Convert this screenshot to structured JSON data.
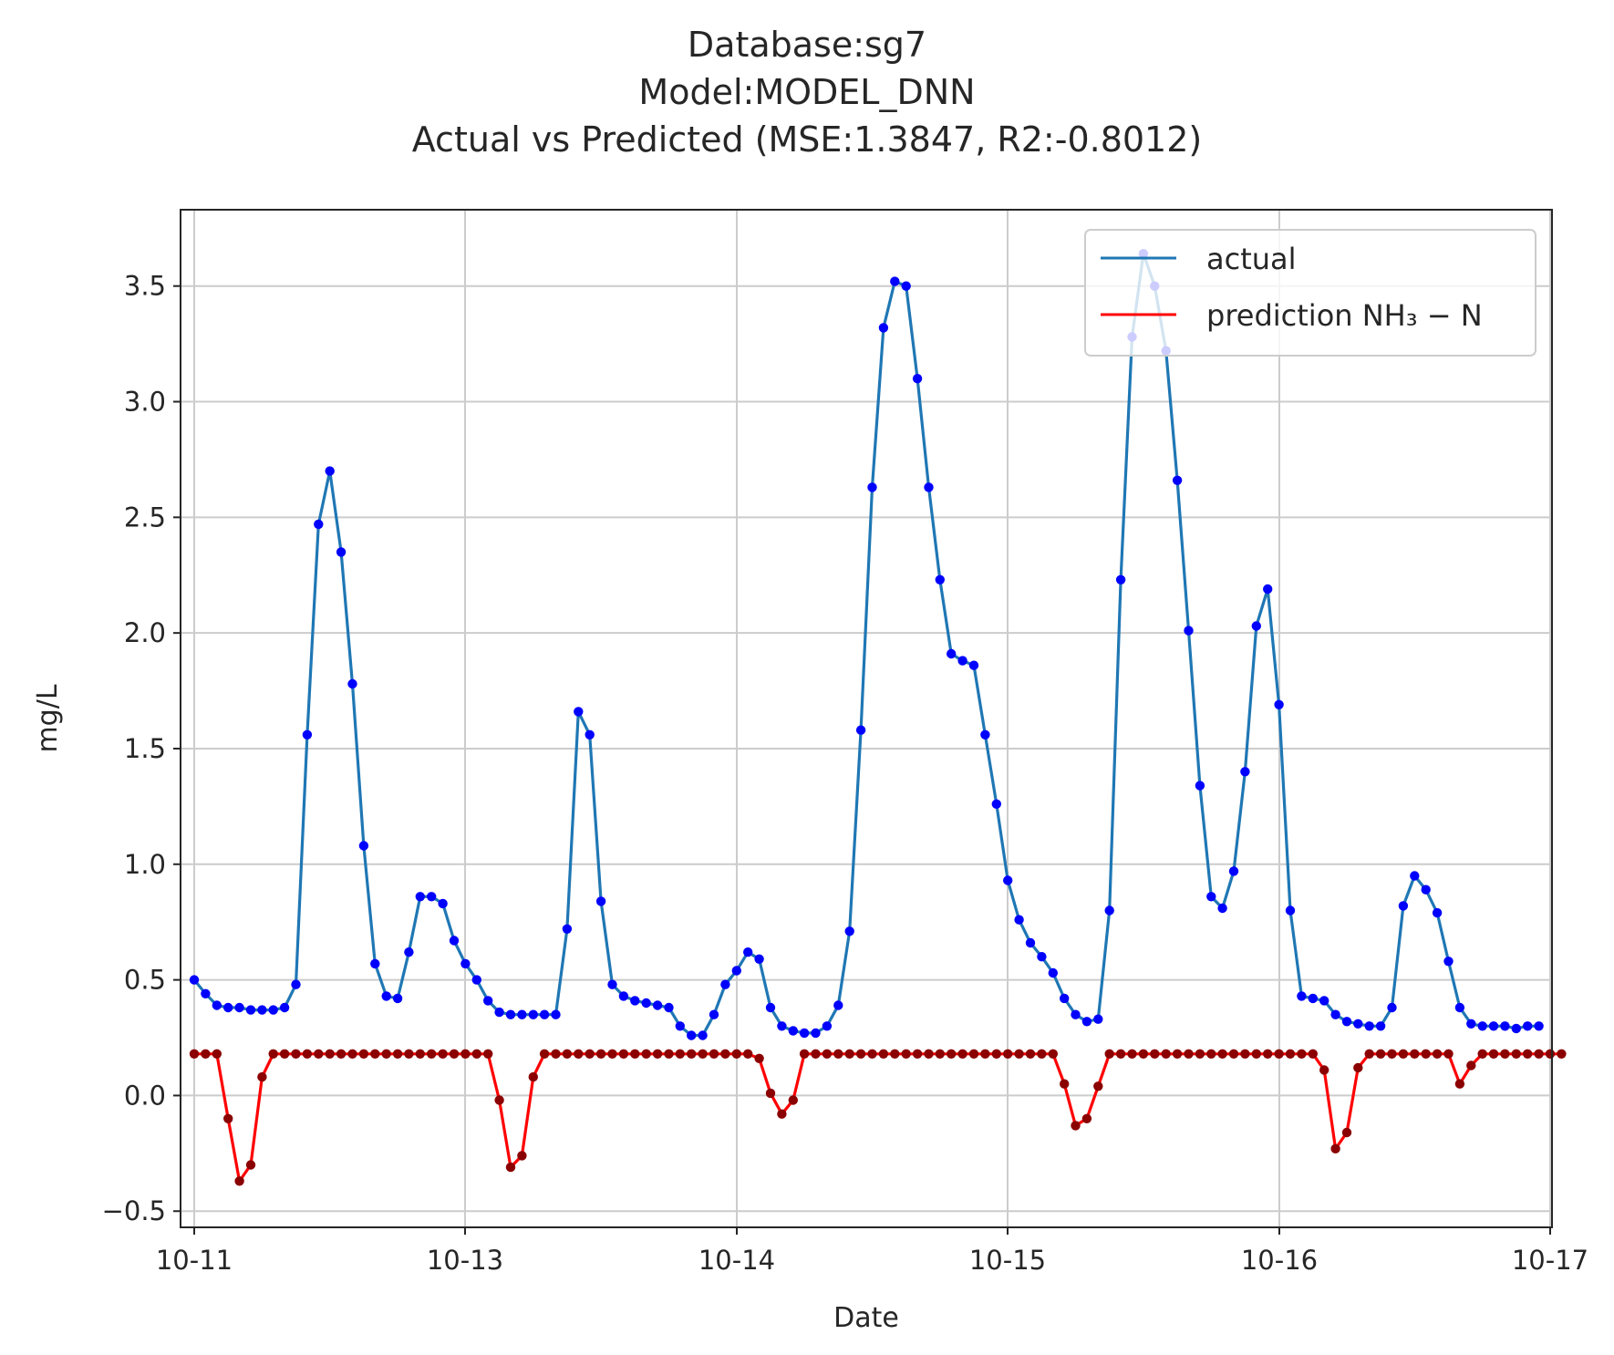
{
  "chart_data": {
    "type": "line",
    "title_lines": [
      "Database:sg7",
      "Model:MODEL_DNN",
      "Actual vs Predicted (MSE:1.3847, R2:-0.8012)"
    ],
    "xlabel": "Date",
    "ylabel": "mg/L",
    "x_ticks": [
      "10-11",
      "10-13",
      "10-14",
      "10-15",
      "10-16",
      "10-17"
    ],
    "y_ticks": [
      "−0.5",
      "0.0",
      "0.5",
      "1.0",
      "1.5",
      "2.0",
      "2.5",
      "3.0",
      "3.5"
    ],
    "y_tick_values": [
      -0.5,
      0,
      0.5,
      1.0,
      1.5,
      2.0,
      2.5,
      3.0,
      3.5
    ],
    "ylim": [
      -0.57,
      3.83
    ],
    "grid": true,
    "legend_position": "top-right",
    "series": [
      {
        "name": "actual",
        "color": "#1f77b4",
        "marker_color": "#0000ff",
        "values": [
          0.5,
          0.44,
          0.39,
          0.38,
          0.38,
          0.37,
          0.37,
          0.37,
          0.38,
          0.48,
          1.56,
          2.47,
          2.7,
          2.35,
          1.78,
          1.08,
          0.57,
          0.43,
          0.42,
          0.62,
          0.86,
          0.86,
          0.83,
          0.67,
          0.57,
          0.5,
          0.41,
          0.36,
          0.35,
          0.35,
          0.35,
          0.35,
          0.35,
          0.72,
          1.66,
          1.56,
          0.84,
          0.48,
          0.43,
          0.41,
          0.4,
          0.39,
          0.38,
          0.3,
          0.26,
          0.26,
          0.35,
          0.48,
          0.54,
          0.62,
          0.59,
          0.38,
          0.3,
          0.28,
          0.27,
          0.27,
          0.3,
          0.39,
          0.71,
          1.58,
          2.63,
          3.32,
          3.52,
          3.5,
          3.1,
          2.63,
          2.23,
          1.91,
          1.88,
          1.86,
          1.56,
          1.26,
          0.93,
          0.76,
          0.66,
          0.6,
          0.53,
          0.42,
          0.35,
          0.32,
          0.33,
          0.8,
          2.23,
          3.28,
          3.64,
          3.5,
          3.22,
          2.66,
          2.01,
          1.34,
          0.86,
          0.81,
          0.97,
          1.4,
          2.03,
          2.19,
          1.69,
          0.8,
          0.43,
          0.42,
          0.41,
          0.35,
          0.32,
          0.31,
          0.3,
          0.3,
          0.38,
          0.82,
          0.95,
          0.89,
          0.79,
          0.58,
          0.38,
          0.31,
          0.3,
          0.3,
          0.3,
          0.29,
          0.3,
          0.3
        ]
      },
      {
        "name": "prediction NH₃ − N",
        "color": "#ff0000",
        "marker_color": "#8b0000",
        "values": [
          0.18,
          0.18,
          0.18,
          -0.1,
          -0.37,
          -0.3,
          0.08,
          0.18,
          0.18,
          0.18,
          0.18,
          0.18,
          0.18,
          0.18,
          0.18,
          0.18,
          0.18,
          0.18,
          0.18,
          0.18,
          0.18,
          0.18,
          0.18,
          0.18,
          0.18,
          0.18,
          0.18,
          -0.02,
          -0.31,
          -0.26,
          0.08,
          0.18,
          0.18,
          0.18,
          0.18,
          0.18,
          0.18,
          0.18,
          0.18,
          0.18,
          0.18,
          0.18,
          0.18,
          0.18,
          0.18,
          0.18,
          0.18,
          0.18,
          0.18,
          0.18,
          0.16,
          0.01,
          -0.08,
          -0.02,
          0.18,
          0.18,
          0.18,
          0.18,
          0.18,
          0.18,
          0.18,
          0.18,
          0.18,
          0.18,
          0.18,
          0.18,
          0.18,
          0.18,
          0.18,
          0.18,
          0.18,
          0.18,
          0.18,
          0.18,
          0.18,
          0.18,
          0.18,
          0.05,
          -0.13,
          -0.1,
          0.04,
          0.18,
          0.18,
          0.18,
          0.18,
          0.18,
          0.18,
          0.18,
          0.18,
          0.18,
          0.18,
          0.18,
          0.18,
          0.18,
          0.18,
          0.18,
          0.18,
          0.18,
          0.18,
          0.18,
          0.11,
          -0.23,
          -0.16,
          0.12,
          0.18,
          0.18,
          0.18,
          0.18,
          0.18,
          0.18,
          0.18,
          0.18,
          0.05,
          0.13,
          0.18,
          0.18,
          0.18,
          0.18,
          0.18,
          0.18,
          0.18,
          0.18
        ]
      }
    ]
  }
}
